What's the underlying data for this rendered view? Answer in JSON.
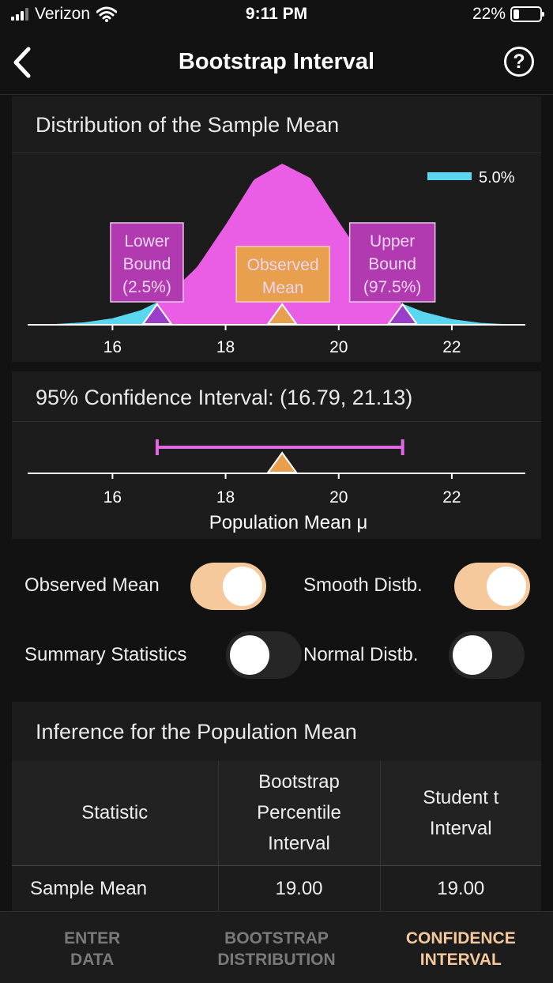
{
  "status": {
    "carrier": "Verizon",
    "time": "9:11 PM",
    "battery": "22%"
  },
  "nav": {
    "title": "Bootstrap Interval",
    "back_icon": "chevron-left-icon",
    "help_icon": "question-circle-icon",
    "help_glyph": "?"
  },
  "distribution": {
    "title": "Distribution of the Sample Mean",
    "legend_label": "5.0%",
    "lower_label": [
      "Lower",
      "Bound",
      "(2.5%)"
    ],
    "observed_label": [
      "Observed",
      "Mean"
    ],
    "upper_label": [
      "Upper",
      "Bound",
      "(97.5%)"
    ]
  },
  "interval": {
    "title": "95% Confidence Interval: (16.79, 21.13)",
    "xlabel": "Population Mean μ"
  },
  "chart_data": [
    {
      "type": "area",
      "x": [
        14.5,
        15.0,
        15.5,
        16.0,
        16.5,
        16.79,
        17.0,
        17.5,
        18.0,
        18.5,
        19.0,
        19.5,
        20.0,
        20.5,
        21.0,
        21.13,
        21.5,
        22.0,
        22.5,
        23.0,
        23.3
      ],
      "y": [
        0.0,
        0.005,
        0.015,
        0.04,
        0.09,
        0.14,
        0.19,
        0.36,
        0.62,
        0.9,
        1.0,
        0.91,
        0.64,
        0.38,
        0.16,
        0.13,
        0.08,
        0.035,
        0.012,
        0.003,
        0.0
      ],
      "xlim": [
        14.5,
        23.3
      ],
      "xticks": [
        16,
        18,
        20,
        22
      ],
      "lower_bound": 16.79,
      "observed_mean": 19.0,
      "upper_bound": 21.13,
      "legend": [
        {
          "label": "5.0%",
          "color": "#5ad7ef"
        }
      ],
      "colors": {
        "body": "#ea5ee6",
        "tails": "#5ad7ef",
        "observed": "#e8a04e"
      }
    },
    {
      "type": "line",
      "interval": [
        16.79,
        21.13
      ],
      "point": 19.0,
      "xlim": [
        14.5,
        23.3
      ],
      "xticks": [
        16,
        18,
        20,
        22
      ],
      "xlabel": "Population Mean μ",
      "colors": {
        "interval": "#e267e4",
        "point": "#e8a04e"
      }
    }
  ],
  "toggles": {
    "observed_mean": {
      "label": "Observed Mean",
      "on": true
    },
    "smooth": {
      "label": "Smooth Distb.",
      "on": true
    },
    "summary": {
      "label": "Summary Statistics",
      "on": false
    },
    "normal": {
      "label": "Normal Distb.",
      "on": false
    }
  },
  "inference": {
    "title": "Inference for the Population Mean",
    "headers": {
      "statistic": "Statistic",
      "bootstrap": [
        "Bootstrap",
        "Percentile",
        "Interval"
      ],
      "student": [
        "Student t",
        "Interval"
      ]
    },
    "rows": [
      {
        "statistic": "Sample Mean",
        "bootstrap": "19.00",
        "student": "19.00"
      }
    ]
  },
  "tabs": [
    {
      "label": [
        "ENTER",
        "DATA"
      ],
      "active": false
    },
    {
      "label": [
        "BOOTSTRAP",
        "DISTRIBUTION"
      ],
      "active": false
    },
    {
      "label": [
        "CONFIDENCE",
        "INTERVAL"
      ],
      "active": true
    }
  ],
  "colors": {
    "accent": "#f5c99c",
    "background": "#121212",
    "panel": "#1c1c1c"
  }
}
